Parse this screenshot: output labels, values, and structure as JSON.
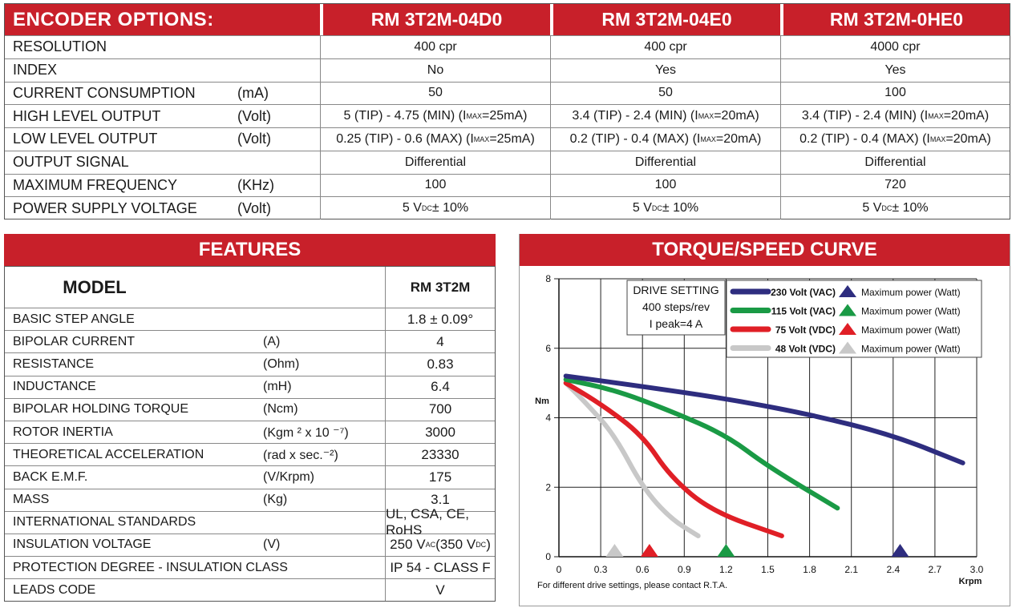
{
  "encoder": {
    "title": "ENCODER OPTIONS:",
    "models": [
      "RM 3T2M-04D0",
      "RM 3T2M-04E0",
      "RM 3T2M-0HE0"
    ],
    "rows": [
      {
        "label": "RESOLUTION",
        "unit": "",
        "values": [
          "400 cpr",
          "400 cpr",
          "4000 cpr"
        ]
      },
      {
        "label": "INDEX",
        "unit": "",
        "values": [
          "No",
          "Yes",
          "Yes"
        ]
      },
      {
        "label": "CURRENT CONSUMPTION",
        "unit": "(mA)",
        "values": [
          "50",
          "50",
          "100"
        ]
      },
      {
        "label": "HIGH LEVEL OUTPUT",
        "unit": "(Volt)",
        "values": [
          "5 (TIP) - 4.75 (MIN) (IMAX=25mA)",
          "3.4 (TIP) - 2.4 (MIN) (IMAX=20mA)",
          "3.4 (TIP) - 2.4 (MIN) (IMAX=20mA)"
        ]
      },
      {
        "label": "LOW LEVEL OUTPUT",
        "unit": "(Volt)",
        "values": [
          "0.25 (TIP) - 0.6 (MAX) (IMAX=25mA)",
          "0.2 (TIP) - 0.4 (MAX) (IMAX=20mA)",
          "0.2 (TIP) - 0.4 (MAX) (IMAX=20mA)"
        ]
      },
      {
        "label": "OUTPUT SIGNAL",
        "unit": "",
        "values": [
          "Differential",
          "Differential",
          "Differential"
        ]
      },
      {
        "label": "MAXIMUM FREQUENCY",
        "unit": "(KHz)",
        "values": [
          "100",
          "100",
          "720"
        ]
      },
      {
        "label": "POWER SUPPLY VOLTAGE",
        "unit": "(Volt)",
        "values": [
          "5 VDC ± 10%",
          "5 VDC ± 10%",
          "5 VDC ± 10%"
        ]
      }
    ]
  },
  "features": {
    "title": "FEATURES",
    "model_label": "MODEL",
    "model_value": "RM 3T2M",
    "rows": [
      {
        "label": "BASIC STEP ANGLE",
        "unit": "",
        "value": "1.8 ± 0.09°"
      },
      {
        "label": "BIPOLAR CURRENT",
        "unit": "(A)",
        "value": "4"
      },
      {
        "label": "RESISTANCE",
        "unit": "(Ohm)",
        "value": "0.83"
      },
      {
        "label": "INDUCTANCE",
        "unit": "(mH)",
        "value": "6.4"
      },
      {
        "label": "BIPOLAR HOLDING TORQUE",
        "unit": "(Ncm)",
        "value": "700"
      },
      {
        "label": "ROTOR INERTIA",
        "unit": "(Kgm ² x 10 ⁻⁷)",
        "value": "3000"
      },
      {
        "label": "THEORETICAL ACCELERATION",
        "unit": "(rad x sec.⁻²)",
        "value": "23330"
      },
      {
        "label": "BACK E.M.F.",
        "unit": "(V/Krpm)",
        "value": "175"
      },
      {
        "label": "MASS",
        "unit": "(Kg)",
        "value": "3.1"
      },
      {
        "label": "INTERNATIONAL STANDARDS",
        "unit": "",
        "value": "UL, CSA, CE, RoHS"
      },
      {
        "label": "INSULATION VOLTAGE",
        "unit": "(V)",
        "value": "250 VAC (350 VDC)"
      },
      {
        "label": "PROTECTION DEGREE - INSULATION CLASS",
        "unit": "",
        "value": "IP 54 - CLASS F"
      },
      {
        "label": "LEADS CODE",
        "unit": "",
        "value": "V"
      }
    ]
  },
  "curve": {
    "title": "TORQUE/SPEED CURVE",
    "footnote": "For different drive settings, please contact R.T.A.",
    "drive_setting": [
      "DRIVE SETTING",
      "400 steps/rev",
      "I peak=4 A"
    ],
    "max_power_label": "Maximum power (Watt)"
  },
  "chart_data": {
    "type": "line",
    "title": "TORQUE/SPEED CURVE",
    "xlabel": "Krpm",
    "ylabel": "Nm",
    "xlim": [
      0,
      3.0
    ],
    "ylim": [
      0,
      8
    ],
    "xticks": [
      "0",
      "0.3",
      "0.6",
      "0.9",
      "1.2",
      "1.5",
      "1.8",
      "2.1",
      "2.4",
      "2.7",
      "3.0"
    ],
    "yticks": [
      "0",
      "2",
      "4",
      "6",
      "8"
    ],
    "grid": true,
    "legend_position": "top-right",
    "series": [
      {
        "name": "230 Volt (VAC)",
        "color": "#2e2d7f",
        "x": [
          0.05,
          0.6,
          1.2,
          1.8,
          2.4,
          2.9
        ],
        "y": [
          5.2,
          4.9,
          4.55,
          4.1,
          3.5,
          2.7
        ],
        "max_power_x": 2.45
      },
      {
        "name": "115 Volt (VAC)",
        "color": "#1a9a45",
        "x": [
          0.05,
          0.4,
          0.8,
          1.2,
          1.5,
          2.0
        ],
        "y": [
          5.1,
          4.8,
          4.2,
          3.5,
          2.6,
          1.4
        ],
        "max_power_x": 1.2
      },
      {
        "name": "75 Volt (VDC)",
        "color": "#e01f26",
        "x": [
          0.05,
          0.3,
          0.6,
          0.8,
          1.1,
          1.6
        ],
        "y": [
          5.0,
          4.4,
          3.5,
          2.3,
          1.3,
          0.6
        ],
        "max_power_x": 0.65
      },
      {
        "name": "48 Volt (VDC)",
        "color": "#c8c8c8",
        "x": [
          0.05,
          0.2,
          0.4,
          0.6,
          0.8,
          1.0
        ],
        "y": [
          5.0,
          4.4,
          3.5,
          2.0,
          1.1,
          0.6
        ],
        "max_power_x": 0.4
      }
    ]
  }
}
